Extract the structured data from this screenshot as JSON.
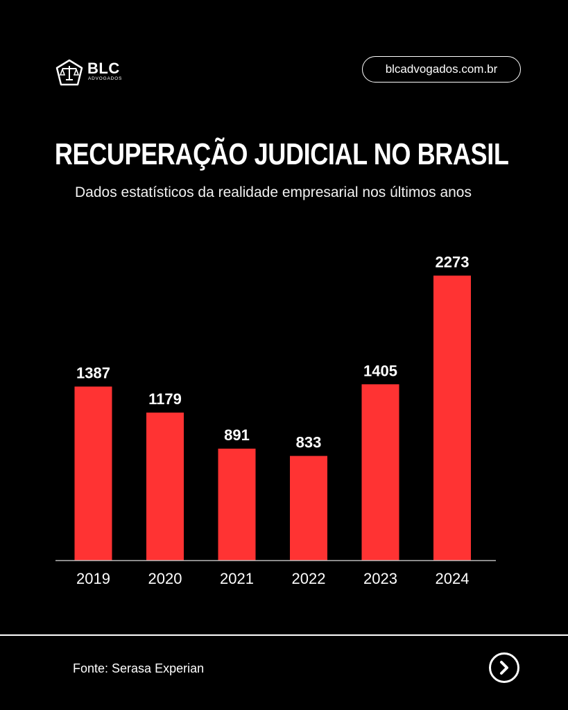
{
  "header": {
    "brand_name": "BLC",
    "brand_sub": "ADVOGADOS",
    "website": "blcadvogados.com.br"
  },
  "title": "RECUPERAÇÃO JUDICIAL NO BRASIL",
  "subtitle": "Dados estatísticos da realidade empresarial nos últimos anos",
  "chart_data": {
    "type": "bar",
    "categories": [
      "2019",
      "2020",
      "2021",
      "2022",
      "2023",
      "2024"
    ],
    "values": [
      1387,
      1179,
      891,
      833,
      1405,
      2273
    ],
    "title": "RECUPERAÇÃO JUDICIAL NO BRASIL",
    "xlabel": "",
    "ylabel": "",
    "bar_color": "#ff3333",
    "grid": false,
    "data_labels": true
  },
  "footer": {
    "source": "Fonte: Serasa Experian",
    "next_icon": "chevron-right-icon"
  },
  "colors": {
    "background": "#000000",
    "accent": "#ff3333",
    "text": "#ffffff"
  }
}
